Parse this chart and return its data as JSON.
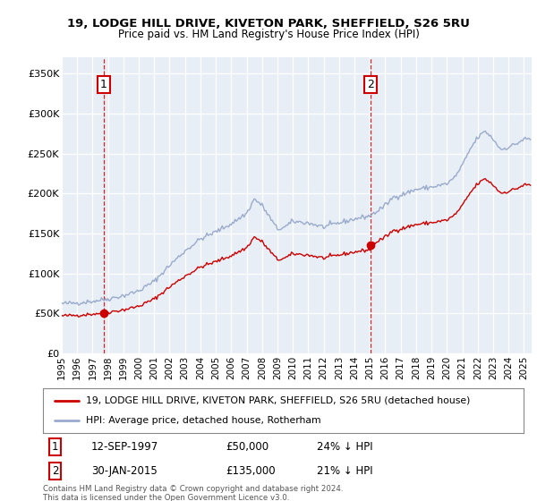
{
  "title1": "19, LODGE HILL DRIVE, KIVETON PARK, SHEFFIELD, S26 5RU",
  "title2": "Price paid vs. HM Land Registry's House Price Index (HPI)",
  "ylabel_ticks": [
    "£0",
    "£50K",
    "£100K",
    "£150K",
    "£200K",
    "£250K",
    "£300K",
    "£350K"
  ],
  "ytick_values": [
    0,
    50000,
    100000,
    150000,
    200000,
    250000,
    300000,
    350000
  ],
  "ylim": [
    0,
    370000
  ],
  "xlim_start": 1995.0,
  "xlim_end": 2025.5,
  "legend1": "19, LODGE HILL DRIVE, KIVETON PARK, SHEFFIELD, S26 5RU (detached house)",
  "legend2": "HPI: Average price, detached house, Rotherham",
  "annotation1_text1": "12-SEP-1997",
  "annotation1_text2": "£50,000",
  "annotation1_text3": "24% ↓ HPI",
  "annotation2_text1": "30-JAN-2015",
  "annotation2_text2": "£135,000",
  "annotation2_text3": "21% ↓ HPI",
  "footer": "Contains HM Land Registry data © Crown copyright and database right 2024.\nThis data is licensed under the Open Government Licence v3.0.",
  "line_color_property": "#cc0000",
  "line_color_hpi": "#99aacc",
  "vline_color": "#cc0000",
  "grid_color": "#cccccc",
  "background_color": "#ffffff",
  "plot_bg_color": "#e8eef5"
}
